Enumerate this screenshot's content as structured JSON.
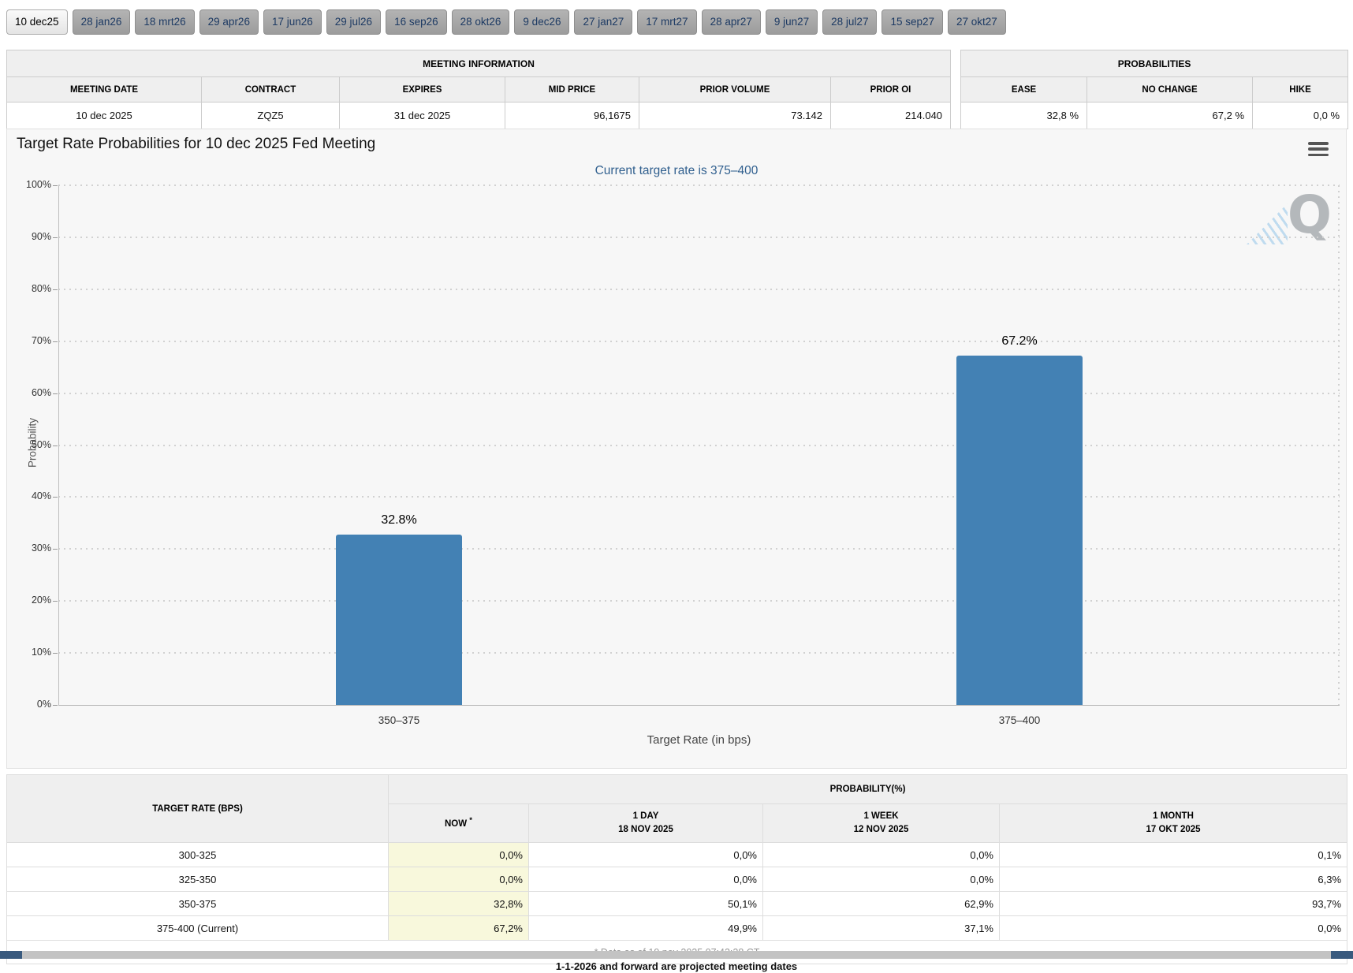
{
  "tabs": {
    "items": [
      {
        "label": "10 dec25",
        "active": true
      },
      {
        "label": "28 jan26",
        "active": false
      },
      {
        "label": "18 mrt26",
        "active": false
      },
      {
        "label": "29 apr26",
        "active": false
      },
      {
        "label": "17 jun26",
        "active": false
      },
      {
        "label": "29 jul26",
        "active": false
      },
      {
        "label": "16 sep26",
        "active": false
      },
      {
        "label": "28 okt26",
        "active": false
      },
      {
        "label": "9 dec26",
        "active": false
      },
      {
        "label": "27 jan27",
        "active": false
      },
      {
        "label": "17 mrt27",
        "active": false
      },
      {
        "label": "28 apr27",
        "active": false
      },
      {
        "label": "9 jun27",
        "active": false
      },
      {
        "label": "28 jul27",
        "active": false
      },
      {
        "label": "15 sep27",
        "active": false
      },
      {
        "label": "27 okt27",
        "active": false
      }
    ]
  },
  "meeting_info": {
    "title": "MEETING INFORMATION",
    "columns": [
      "MEETING DATE",
      "CONTRACT",
      "EXPIRES",
      "MID PRICE",
      "PRIOR VOLUME",
      "PRIOR OI"
    ],
    "row": {
      "meeting_date": "10 dec 2025",
      "contract": "ZQZ5",
      "expires": "31 dec 2025",
      "mid_price": "96,1675",
      "prior_volume": "73.142",
      "prior_oi": "214.040"
    }
  },
  "probabilities_summary": {
    "title": "PROBABILITIES",
    "columns": [
      "EASE",
      "NO CHANGE",
      "HIKE"
    ],
    "row": {
      "ease": "32,8 %",
      "no_change": "67,2 %",
      "hike": "0,0 %"
    }
  },
  "chart_data": {
    "type": "bar",
    "title": "Target Rate Probabilities for 10 dec 2025 Fed Meeting",
    "subtitle": "Current target rate is 375–400",
    "categories": [
      "350–375",
      "375–400"
    ],
    "values": [
      32.8,
      67.2
    ],
    "value_labels": [
      "32.8%",
      "67.2%"
    ],
    "xlabel": "Target Rate (in bps)",
    "ylabel": "Probability",
    "ylim": [
      0,
      100
    ],
    "ytick_step": 10,
    "ytick_suffix": "%",
    "grid": "dotted horizontal",
    "legend": "none",
    "bar_color": "#4381b4",
    "watermark": "Q"
  },
  "probability_table": {
    "corner_header": "TARGET RATE (BPS)",
    "group_header": "PROBABILITY(%)",
    "columns": [
      {
        "label": "NOW",
        "note": "*",
        "date": ""
      },
      {
        "label": "1 DAY",
        "date": "18 NOV 2025"
      },
      {
        "label": "1 WEEK",
        "date": "12 NOV 2025"
      },
      {
        "label": "1 MONTH",
        "date": "17 OKT 2025"
      }
    ],
    "rows": [
      {
        "rate": "300-325",
        "now": "0,0%",
        "one_day": "0,0%",
        "one_week": "0,0%",
        "one_month": "0,1%"
      },
      {
        "rate": "325-350",
        "now": "0,0%",
        "one_day": "0,0%",
        "one_week": "0,0%",
        "one_month": "6,3%"
      },
      {
        "rate": "350-375",
        "now": "32,8%",
        "one_day": "50,1%",
        "one_week": "62,9%",
        "one_month": "93,7%"
      },
      {
        "rate": "375-400 (Current)",
        "now": "67,2%",
        "one_day": "49,9%",
        "one_week": "37,1%",
        "one_month": "0,0%"
      }
    ],
    "footnote": "* Data as of 19 nov 2025 07:42:28 CT"
  },
  "footer": {
    "note": "1-1-2026 and forward are projected meeting dates"
  },
  "colors": {
    "bar": "#4381b4",
    "now_column_highlight": "#f8f8dc",
    "tab_text": "#1d3a63",
    "subtitle_text": "#31608f",
    "scroll_button": "#395a7e"
  }
}
